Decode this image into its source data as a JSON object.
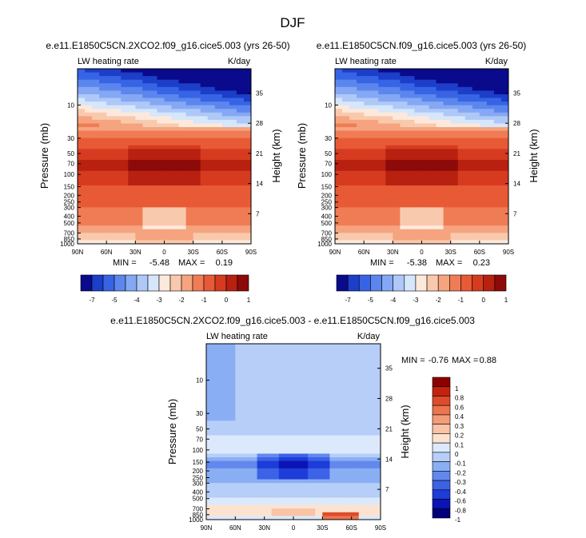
{
  "figure": {
    "title": "DJF"
  },
  "chart_data": [
    {
      "type": "heatmap",
      "title": "e.e11.E1850C5CN.2XCO2.f09_g16.cice5.003 (yrs 26-50)",
      "left_label": "LW heating rate",
      "right_label": "K/day",
      "xlabel": "",
      "ylabel": "Pressure (mb)",
      "ylabel_right": "Height (km)",
      "xticks": [
        "90N",
        "60N",
        "30N",
        "0",
        "30S",
        "60S",
        "90S"
      ],
      "yticks": [
        "10",
        "30",
        "50",
        "70",
        "100",
        "150",
        "200",
        "250",
        "300",
        "400",
        "500",
        "700",
        "850",
        "1000"
      ],
      "yticks_right": [
        "35",
        "28",
        "21",
        "14",
        "7"
      ],
      "ylim": [
        1000,
        3
      ],
      "log_scale_y": true,
      "stats": {
        "min_label": "MIN =",
        "min": "-5.48",
        "max_label": "MAX =",
        "max": "0.19"
      },
      "colorbar_ticks": [
        "-7",
        "-5",
        "-4",
        "-3",
        "-2",
        "-1",
        "0",
        "1"
      ],
      "bands": [
        {
          "p": 3,
          "level": 0
        },
        {
          "p": 5,
          "level": 2
        },
        {
          "p": 8,
          "level": 4
        },
        {
          "p": 14,
          "level": 7
        },
        {
          "p": 25,
          "level": 10
        },
        {
          "p": 50,
          "level": 12
        },
        {
          "p": 75,
          "level": 13
        },
        {
          "p": 110,
          "level": 12
        },
        {
          "p": 200,
          "level": 11
        },
        {
          "p": 400,
          "level": 10
        },
        {
          "p": 700,
          "level": 9
        },
        {
          "p": 1000,
          "level": 8
        }
      ]
    },
    {
      "type": "heatmap",
      "title": "e.e11.E1850C5CN.f09_g16.cice5.003 (yrs 26-50)",
      "left_label": "LW heating rate",
      "right_label": "K/day",
      "xlabel": "",
      "ylabel": "Pressure (mb)",
      "ylabel_right": "Height (km)",
      "xticks": [
        "90N",
        "60N",
        "30N",
        "0",
        "30S",
        "60S",
        "90S"
      ],
      "yticks": [
        "10",
        "30",
        "50",
        "70",
        "100",
        "150",
        "200",
        "250",
        "300",
        "400",
        "500",
        "700",
        "850",
        "1000"
      ],
      "yticks_right": [
        "35",
        "28",
        "21",
        "14",
        "7"
      ],
      "ylim": [
        1000,
        3
      ],
      "log_scale_y": true,
      "stats": {
        "min_label": "MIN =",
        "min": "-5.38",
        "max_label": "MAX =",
        "max": "0.23"
      },
      "colorbar_ticks": [
        "-7",
        "-5",
        "-4",
        "-3",
        "-2",
        "-1",
        "0",
        "1"
      ],
      "bands": [
        {
          "p": 3,
          "level": 0
        },
        {
          "p": 5,
          "level": 2
        },
        {
          "p": 8,
          "level": 4
        },
        {
          "p": 14,
          "level": 7
        },
        {
          "p": 25,
          "level": 10
        },
        {
          "p": 50,
          "level": 12
        },
        {
          "p": 75,
          "level": 13
        },
        {
          "p": 110,
          "level": 12
        },
        {
          "p": 200,
          "level": 11
        },
        {
          "p": 400,
          "level": 10
        },
        {
          "p": 700,
          "level": 9
        },
        {
          "p": 1000,
          "level": 8
        }
      ]
    },
    {
      "type": "heatmap",
      "title": "e.e11.E1850C5CN.2XCO2.f09_g16.cice5.003 - e.e11.E1850C5CN.f09_g16.cice5.003",
      "left_label": "LW heating rate",
      "right_label": "K/day",
      "xlabel": "",
      "ylabel": "Pressure (mb)",
      "ylabel_right": "Height (km)",
      "xticks": [
        "90N",
        "60N",
        "30N",
        "0",
        "30S",
        "60S",
        "90S"
      ],
      "yticks": [
        "10",
        "30",
        "50",
        "70",
        "100",
        "150",
        "200",
        "250",
        "300",
        "400",
        "500",
        "700",
        "850",
        "1000"
      ],
      "yticks_right": [
        "35",
        "28",
        "21",
        "14",
        "7"
      ],
      "ylim": [
        1000,
        3
      ],
      "log_scale_y": true,
      "stats": {
        "min_label": "MIN =",
        "min": "-0.76",
        "max_label": "MAX =",
        "max": "0.88"
      },
      "colorbar_ticks": [
        "1",
        "0.8",
        "0.6",
        "0.4",
        "0.3",
        "0.2",
        "0.1",
        "0",
        "-0.1",
        "-0.2",
        "-0.3",
        "-0.4",
        "-0.6",
        "-0.8",
        "-1"
      ],
      "bands": [
        {
          "p": 3,
          "level": 6
        },
        {
          "p": 40,
          "level": 6
        },
        {
          "p": 100,
          "level": 7
        },
        {
          "p": 150,
          "level": 4
        },
        {
          "p": 220,
          "level": 5
        },
        {
          "p": 400,
          "level": 6
        },
        {
          "p": 700,
          "level": 8
        },
        {
          "p": 1000,
          "level": 7
        }
      ]
    }
  ],
  "colors": {
    "main_scale": [
      "#0a0a8c",
      "#1c3ec8",
      "#3764e4",
      "#5b86ee",
      "#85a8f4",
      "#aec8f8",
      "#d6e6fb",
      "#fde9dc",
      "#f9c9ad",
      "#f5a47f",
      "#f07c55",
      "#e85a35",
      "#d63b20",
      "#b82010",
      "#8c0a0a"
    ],
    "diff_scale": [
      "#00007a",
      "#0a14b4",
      "#1e3cd8",
      "#3c62e6",
      "#6288ee",
      "#8aaef4",
      "#b6cef8",
      "#dce9fc",
      "#fde3cf",
      "#f9c3a6",
      "#f39c78",
      "#ec744e",
      "#de4a2c",
      "#c4220e",
      "#8c0000"
    ]
  }
}
